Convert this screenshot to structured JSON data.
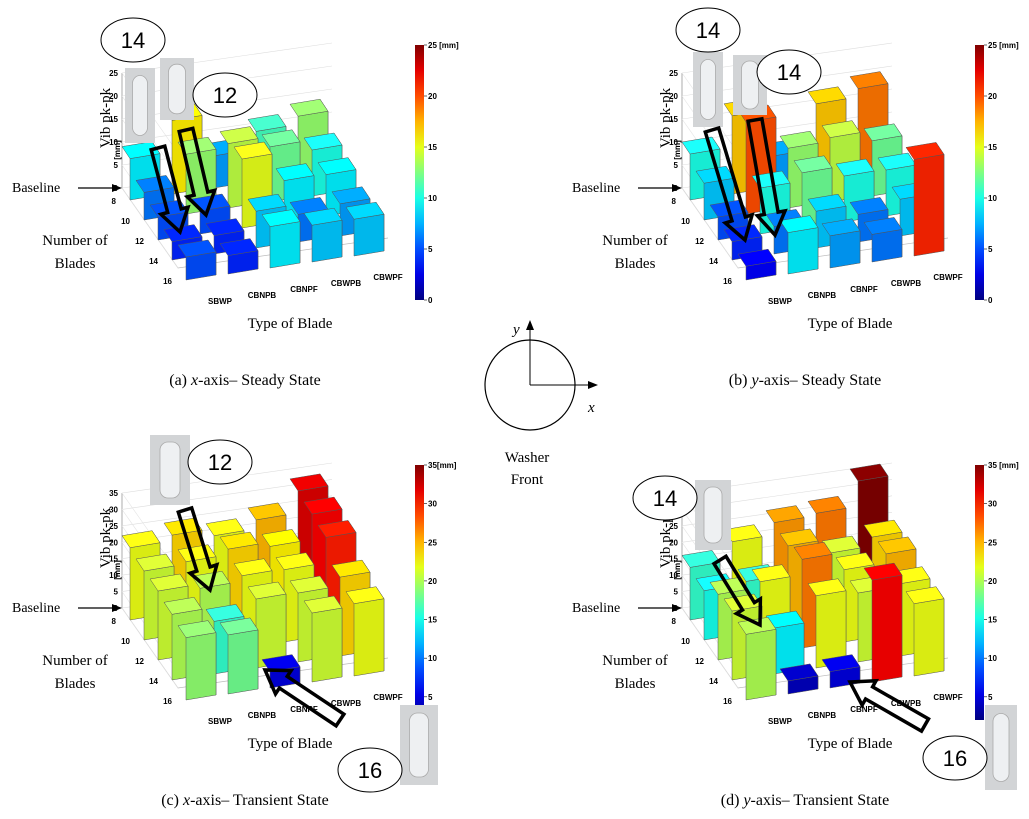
{
  "chart_data": [
    {
      "type": "bar3d",
      "caption_parts": [
        "(a) ",
        "x",
        "-axis– Steady State"
      ],
      "z_label": "Vib pk-pk",
      "z_unit": "[mm]",
      "x_label": "Type of Blade",
      "y_label_lines": [
        "Number of",
        "Blades"
      ],
      "baseline_label": "Baseline",
      "callouts": [
        14,
        12
      ],
      "categories": [
        "8",
        "10",
        "12",
        "14",
        "16"
      ],
      "series": [
        {
          "name": "SBWP",
          "values": [
            9,
            6,
            5,
            4,
            5
          ]
        },
        {
          "name": "CBNPB",
          "values": [
            16,
            13,
            5,
            4,
            4
          ]
        },
        {
          "name": "CBNPF",
          "values": [
            7,
            14,
            15,
            8,
            9
          ]
        },
        {
          "name": "CBWPB",
          "values": [
            11,
            12,
            9,
            6,
            8
          ]
        },
        {
          "name": "CBWPF",
          "values": [
            13,
            10,
            9,
            7,
            8
          ]
        }
      ],
      "zlim": [
        0,
        25
      ],
      "zticks": [
        0,
        5,
        10,
        15,
        20,
        25
      ],
      "clim": [
        0,
        25
      ],
      "cticks": [
        0,
        5,
        10,
        15,
        20,
        {
          "value": 25,
          "label": "25 [mm]"
        }
      ],
      "colormap": "jet"
    },
    {
      "type": "bar3d",
      "caption_parts": [
        "(b) ",
        "y",
        "-axis– Steady State"
      ],
      "z_label": "Vib pk-pk",
      "z_unit": "[mm]",
      "x_label": "Type of Blade",
      "y_label_lines": [
        "Number of",
        "Blades"
      ],
      "baseline_label": "Baseline",
      "callouts": [
        14,
        14
      ],
      "categories": [
        "8",
        "10",
        "12",
        "14",
        "16"
      ],
      "series": [
        {
          "name": "SBWP",
          "values": [
            10,
            8,
            5,
            4,
            3
          ]
        },
        {
          "name": "CBNPB",
          "values": [
            17,
            20,
            10,
            6,
            9
          ]
        },
        {
          "name": "CBNPF",
          "values": [
            7,
            13,
            12,
            8,
            7
          ]
        },
        {
          "name": "CBWPB",
          "values": [
            17,
            14,
            10,
            6,
            6
          ]
        },
        {
          "name": "CBWPF",
          "values": [
            19,
            12,
            10,
            8,
            21
          ]
        }
      ],
      "zlim": [
        0,
        25
      ],
      "zticks": [
        0,
        5,
        10,
        15,
        20,
        25
      ],
      "clim": [
        0,
        25
      ],
      "cticks": [
        0,
        5,
        10,
        15,
        20,
        {
          "value": 25,
          "label": "25 [mm]"
        }
      ],
      "colormap": "jet"
    },
    {
      "type": "bar3d",
      "caption_parts": [
        "(c) ",
        "x",
        "-axis– Transient State"
      ],
      "z_label": "Vib pk-pk",
      "z_unit": "[mm]",
      "x_label": "Type of Blade",
      "y_label_lines": [
        "Number of",
        "Blades"
      ],
      "baseline_label": "Baseline",
      "callouts": [
        12,
        16
      ],
      "categories": [
        "8",
        "10",
        "12",
        "14",
        "16"
      ],
      "series": [
        {
          "name": "SBWP",
          "values": [
            22,
            21,
            21,
            20,
            19
          ]
        },
        {
          "name": "CBNPB",
          "values": [
            24,
            22,
            20,
            16,
            18
          ]
        },
        {
          "name": "CBNPF",
          "values": [
            22,
            24,
            22,
            21,
            5
          ]
        },
        {
          "name": "CBWPB",
          "values": [
            25,
            23,
            22,
            21,
            21
          ]
        },
        {
          "name": "CBWPF",
          "values": [
            32,
            31,
            30,
            24,
            22
          ]
        }
      ],
      "zlim": [
        0,
        35
      ],
      "zticks": [
        0,
        5,
        10,
        15,
        20,
        25,
        30,
        35
      ],
      "clim": [
        2,
        35
      ],
      "cticks": [
        5,
        10,
        15,
        20,
        25,
        30,
        {
          "value": 35,
          "label": "35[mm]"
        }
      ],
      "colormap": "jet"
    },
    {
      "type": "bar3d",
      "caption_parts": [
        "(d) ",
        "y",
        "-axis– Transient State"
      ],
      "z_label": "Vib pk-pk",
      "z_unit": "[mm]",
      "x_label": "Type of Blade",
      "y_label_lines": [
        "Number of",
        "Blades"
      ],
      "baseline_label": "Baseline",
      "callouts": [
        14,
        16
      ],
      "categories": [
        "8",
        "10",
        "12",
        "14",
        "16"
      ],
      "series": [
        {
          "name": "SBWP",
          "values": [
            16,
            15,
            20,
            21,
            20
          ]
        },
        {
          "name": "CBNPB",
          "values": [
            22,
            16,
            22,
            14,
            4
          ]
        },
        {
          "name": "CBNPF",
          "values": [
            26,
            25,
            27,
            22,
            5
          ]
        },
        {
          "name": "CBWPB",
          "values": [
            27,
            21,
            22,
            21,
            31
          ]
        },
        {
          "name": "CBWPF",
          "values": [
            35,
            24,
            25,
            22,
            22
          ]
        }
      ],
      "zlim": [
        0,
        35
      ],
      "zticks": [
        0,
        5,
        10,
        15,
        20,
        25,
        30,
        35
      ],
      "clim": [
        2,
        35
      ],
      "cticks": [
        5,
        10,
        15,
        20,
        25,
        30,
        {
          "value": 35,
          "label": "35 [mm]"
        }
      ],
      "colormap": "jet"
    }
  ],
  "washer": {
    "y_label": "y",
    "x_label": "x",
    "caption_lines": [
      "Washer",
      "Front"
    ]
  }
}
